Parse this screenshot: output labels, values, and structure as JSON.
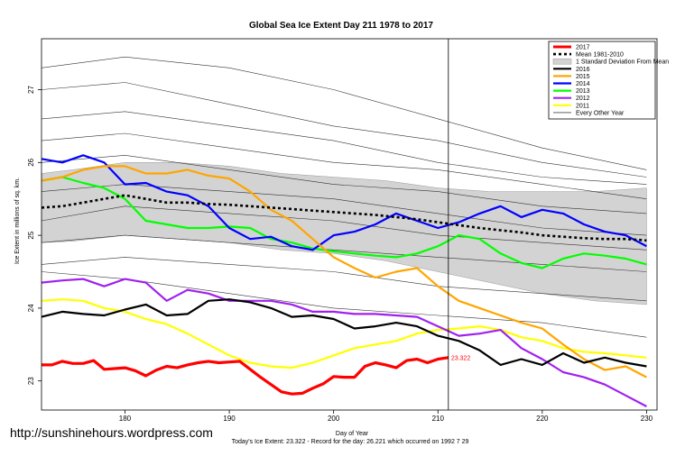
{
  "chart_data": {
    "type": "line",
    "title": "Global Sea Ice Extent Day 211 1978 to 2017",
    "xlabel": "Day of Year",
    "ylabel": "Ice Extent in millions of sq. km.",
    "xlim": [
      172,
      231
    ],
    "ylim": [
      22.6,
      27.7
    ],
    "x_ticks": [
      180,
      190,
      200,
      210,
      220,
      230
    ],
    "y_ticks": [
      23,
      24,
      25,
      26,
      27
    ],
    "grid": false,
    "legend_position": "top-right",
    "marker_x": 211,
    "annotation": "23.322",
    "footnote": "Today's Ice Extent: 23.322  - Record for the day: 26.221 which occurred on 1992 7 29",
    "watermark": "http://sunshinehours.wordpress.com",
    "band": {
      "name": "1 Standard Deviation From Mean",
      "x": [
        172,
        175,
        180,
        185,
        190,
        195,
        200,
        205,
        210,
        215,
        220,
        225,
        230
      ],
      "upper": [
        25.85,
        25.9,
        26.0,
        26.0,
        25.95,
        25.85,
        25.8,
        25.75,
        25.65,
        25.6,
        25.6,
        25.6,
        25.65
      ],
      "lower": [
        24.9,
        24.92,
        25.0,
        24.95,
        24.9,
        24.8,
        24.75,
        24.65,
        24.5,
        24.35,
        24.2,
        24.1,
        24.05
      ]
    },
    "series": [
      {
        "name": "2017",
        "color": "#ff0000",
        "width": 3.2,
        "dash": "",
        "x": [
          172,
          173,
          174,
          175,
          176,
          177,
          178,
          179,
          180,
          181,
          182,
          183,
          184,
          185,
          186,
          187,
          188,
          189,
          190,
          191,
          192,
          193,
          194,
          195,
          196,
          197,
          198,
          199,
          200,
          201,
          202,
          203,
          204,
          205,
          206,
          207,
          208,
          209,
          210,
          211
        ],
        "values": [
          23.22,
          23.22,
          23.27,
          23.24,
          23.24,
          23.28,
          23.16,
          23.17,
          23.18,
          23.14,
          23.07,
          23.15,
          23.2,
          23.18,
          23.22,
          23.25,
          23.27,
          23.25,
          23.26,
          23.27,
          23.16,
          23.05,
          22.95,
          22.85,
          22.82,
          22.83,
          22.9,
          22.96,
          23.06,
          23.05,
          23.05,
          23.2,
          23.25,
          23.22,
          23.18,
          23.28,
          23.3,
          23.25,
          23.3,
          23.32
        ]
      },
      {
        "name": "Mean 1981-2010",
        "color": "#000000",
        "width": 2.6,
        "dash": "3 3",
        "x": [
          172,
          174,
          176,
          178,
          180,
          182,
          184,
          186,
          188,
          190,
          192,
          194,
          196,
          198,
          200,
          202,
          204,
          206,
          208,
          210,
          212,
          214,
          216,
          218,
          220,
          222,
          224,
          226,
          228,
          230
        ],
        "values": [
          25.38,
          25.4,
          25.45,
          25.5,
          25.55,
          25.5,
          25.45,
          25.45,
          25.43,
          25.42,
          25.4,
          25.38,
          25.36,
          25.34,
          25.32,
          25.3,
          25.28,
          25.25,
          25.22,
          25.18,
          25.14,
          25.1,
          25.07,
          25.04,
          25.0,
          24.98,
          24.96,
          24.95,
          24.95,
          24.93
        ]
      },
      {
        "name": "2016",
        "color": "#000000",
        "width": 2.2,
        "dash": "",
        "x": [
          172,
          174,
          176,
          178,
          180,
          182,
          184,
          186,
          188,
          190,
          192,
          194,
          196,
          198,
          200,
          202,
          204,
          206,
          208,
          210,
          212,
          214,
          216,
          218,
          220,
          222,
          224,
          226,
          228,
          230
        ],
        "values": [
          23.88,
          23.95,
          23.92,
          23.9,
          23.98,
          24.05,
          23.9,
          23.92,
          24.1,
          24.12,
          24.08,
          24.0,
          23.88,
          23.9,
          23.85,
          23.72,
          23.75,
          23.8,
          23.75,
          23.62,
          23.55,
          23.42,
          23.22,
          23.3,
          23.22,
          23.38,
          23.25,
          23.32,
          23.25,
          23.2
        ]
      },
      {
        "name": "2015",
        "color": "#ffa500",
        "width": 2.2,
        "dash": "",
        "x": [
          172,
          174,
          176,
          178,
          180,
          182,
          184,
          186,
          188,
          190,
          192,
          194,
          196,
          198,
          200,
          202,
          204,
          206,
          208,
          210,
          212,
          214,
          216,
          218,
          220,
          222,
          224,
          226,
          228,
          230
        ],
        "values": [
          25.75,
          25.8,
          25.9,
          25.95,
          25.95,
          25.85,
          25.85,
          25.9,
          25.82,
          25.78,
          25.6,
          25.35,
          25.2,
          24.95,
          24.7,
          24.55,
          24.42,
          24.5,
          24.55,
          24.3,
          24.1,
          24.0,
          23.9,
          23.8,
          23.72,
          23.5,
          23.3,
          23.15,
          23.2,
          23.05
        ]
      },
      {
        "name": "2014",
        "color": "#0000ff",
        "width": 2.2,
        "dash": "",
        "x": [
          172,
          174,
          176,
          178,
          180,
          182,
          184,
          186,
          188,
          190,
          192,
          194,
          196,
          198,
          200,
          202,
          204,
          206,
          208,
          210,
          212,
          214,
          216,
          218,
          220,
          222,
          224,
          226,
          228,
          230
        ],
        "values": [
          26.05,
          26.0,
          26.1,
          26.0,
          25.7,
          25.72,
          25.6,
          25.55,
          25.4,
          25.1,
          24.95,
          24.98,
          24.85,
          24.8,
          25.0,
          25.05,
          25.15,
          25.3,
          25.2,
          25.1,
          25.18,
          25.3,
          25.4,
          25.25,
          25.35,
          25.3,
          25.15,
          25.05,
          25.0,
          24.85
        ]
      },
      {
        "name": "2013",
        "color": "#00ff00",
        "width": 2.2,
        "dash": "",
        "x": [
          172,
          174,
          176,
          178,
          180,
          182,
          184,
          186,
          188,
          190,
          192,
          194,
          196,
          198,
          200,
          202,
          204,
          206,
          208,
          210,
          212,
          214,
          216,
          218,
          220,
          222,
          224,
          226,
          228,
          230
        ],
        "values": [
          25.75,
          25.8,
          25.72,
          25.65,
          25.5,
          25.2,
          25.15,
          25.1,
          25.1,
          25.12,
          25.1,
          24.95,
          24.9,
          24.82,
          24.78,
          24.75,
          24.72,
          24.7,
          24.75,
          24.85,
          25.0,
          24.95,
          24.75,
          24.62,
          24.55,
          24.68,
          24.75,
          24.72,
          24.68,
          24.6
        ]
      },
      {
        "name": "2012",
        "color": "#a020f0",
        "width": 2.2,
        "dash": "",
        "x": [
          172,
          174,
          176,
          178,
          180,
          182,
          184,
          186,
          188,
          190,
          192,
          194,
          196,
          198,
          200,
          202,
          204,
          206,
          208,
          210,
          212,
          214,
          216,
          218,
          220,
          222,
          224,
          226,
          228,
          230
        ],
        "values": [
          24.35,
          24.38,
          24.4,
          24.3,
          24.4,
          24.35,
          24.1,
          24.25,
          24.2,
          24.1,
          24.1,
          24.1,
          24.05,
          23.95,
          23.95,
          23.92,
          23.92,
          23.9,
          23.88,
          23.75,
          23.62,
          23.65,
          23.7,
          23.45,
          23.3,
          23.12,
          23.05,
          22.95,
          22.8,
          22.65
        ]
      },
      {
        "name": "2011",
        "color": "#ffff00",
        "width": 2.2,
        "dash": "",
        "x": [
          172,
          174,
          176,
          178,
          180,
          182,
          184,
          186,
          188,
          190,
          192,
          194,
          196,
          198,
          200,
          202,
          204,
          206,
          208,
          210,
          212,
          214,
          216,
          218,
          220,
          222,
          224,
          226,
          228,
          230
        ],
        "values": [
          24.1,
          24.12,
          24.1,
          24.0,
          23.95,
          23.85,
          23.78,
          23.65,
          23.5,
          23.35,
          23.25,
          23.2,
          23.18,
          23.25,
          23.35,
          23.45,
          23.5,
          23.55,
          23.65,
          23.7,
          23.72,
          23.75,
          23.7,
          23.6,
          23.55,
          23.45,
          23.4,
          23.38,
          23.35,
          23.32
        ]
      },
      {
        "name": "Every Other Year",
        "color": "#000000",
        "width": 0.6,
        "dash": "",
        "x": [],
        "values": []
      }
    ],
    "other_years": [
      {
        "x": [
          172,
          180,
          190,
          200,
          210,
          220,
          230
        ],
        "values": [
          27.3,
          27.45,
          27.3,
          27.0,
          26.6,
          26.2,
          25.9
        ]
      },
      {
        "x": [
          172,
          180,
          190,
          200,
          210,
          220,
          230
        ],
        "values": [
          27.0,
          27.1,
          26.8,
          26.5,
          26.3,
          26.0,
          25.8
        ]
      },
      {
        "x": [
          172,
          180,
          190,
          200,
          210,
          220,
          230
        ],
        "values": [
          26.6,
          26.7,
          26.5,
          26.3,
          26.0,
          25.8,
          25.7
        ]
      },
      {
        "x": [
          172,
          180,
          190,
          200,
          210,
          220,
          230
        ],
        "values": [
          26.3,
          26.4,
          26.2,
          26.0,
          25.9,
          25.7,
          25.5
        ]
      },
      {
        "x": [
          172,
          180,
          190,
          200,
          210,
          220,
          230
        ],
        "values": [
          26.0,
          26.1,
          25.9,
          25.7,
          25.6,
          25.4,
          25.3
        ]
      },
      {
        "x": [
          172,
          180,
          190,
          200,
          210,
          220,
          230
        ],
        "values": [
          25.6,
          25.7,
          25.6,
          25.5,
          25.3,
          25.1,
          25.0
        ]
      },
      {
        "x": [
          172,
          180,
          190,
          200,
          210,
          220,
          230
        ],
        "values": [
          25.2,
          25.4,
          25.3,
          25.2,
          25.0,
          24.9,
          24.8
        ]
      },
      {
        "x": [
          172,
          180,
          190,
          200,
          210,
          220,
          230
        ],
        "values": [
          24.9,
          25.0,
          24.9,
          24.8,
          24.7,
          24.6,
          24.5
        ]
      },
      {
        "x": [
          172,
          180,
          190,
          200,
          210,
          220,
          230
        ],
        "values": [
          24.6,
          24.7,
          24.6,
          24.5,
          24.3,
          24.2,
          24.1
        ]
      },
      {
        "x": [
          172,
          180,
          190,
          200,
          210,
          220,
          230
        ],
        "values": [
          24.5,
          24.4,
          24.2,
          24.0,
          23.9,
          23.8,
          23.6
        ]
      }
    ]
  }
}
